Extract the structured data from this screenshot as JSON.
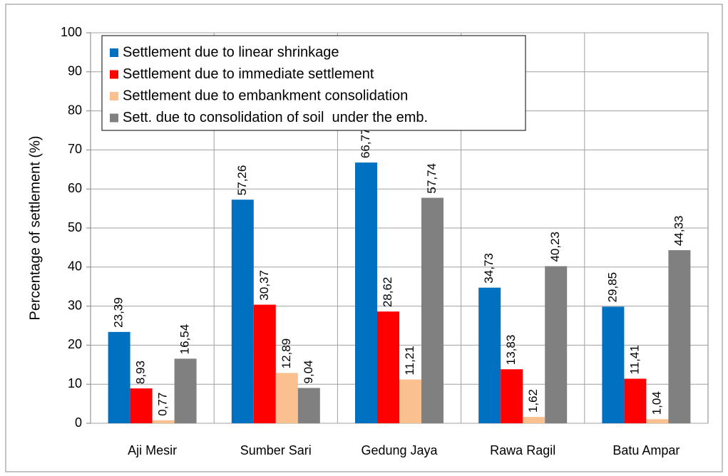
{
  "chart_data": {
    "type": "bar",
    "y_label": "Percentage of settlement (%)",
    "categories": [
      "Aji Mesir",
      "Sumber Sari",
      "Gedung Jaya",
      "Rawa Ragil",
      "Batu Ampar"
    ],
    "series": [
      {
        "name": "Settlement due to linear shrinkage",
        "color": "#0070c0",
        "values": [
          23.39,
          57.26,
          66.77,
          34.73,
          29.85
        ],
        "value_labels": [
          "23,39",
          "57,26",
          "66,77",
          "34,73",
          "29,85"
        ]
      },
      {
        "name": "Settlement due to immediate settlement",
        "color": "#ff0000",
        "values": [
          8.93,
          30.37,
          28.62,
          13.83,
          11.41
        ],
        "value_labels": [
          "8,93",
          "30,37",
          "28,62",
          "13,83",
          "11,41"
        ]
      },
      {
        "name": "Settlement due to embankment consolidation",
        "color": "#fac090",
        "values": [
          0.77,
          12.89,
          11.21,
          1.62,
          1.04
        ],
        "value_labels": [
          "0,77",
          "12,89",
          "11,21",
          "1,62",
          "1,04"
        ]
      },
      {
        "name": "Sett. due to consolidation of soil  under the emb.",
        "color": "#808080",
        "values": [
          16.54,
          9.04,
          57.74,
          40.23,
          44.33
        ],
        "value_labels": [
          "16,54",
          "9,04",
          "57,74",
          "40,23",
          "44,33"
        ]
      }
    ],
    "ylim": [
      0,
      100
    ],
    "yticks": [
      0,
      10,
      20,
      30,
      40,
      50,
      60,
      70,
      80,
      90,
      100
    ],
    "grid": true,
    "legend": "top-left"
  }
}
